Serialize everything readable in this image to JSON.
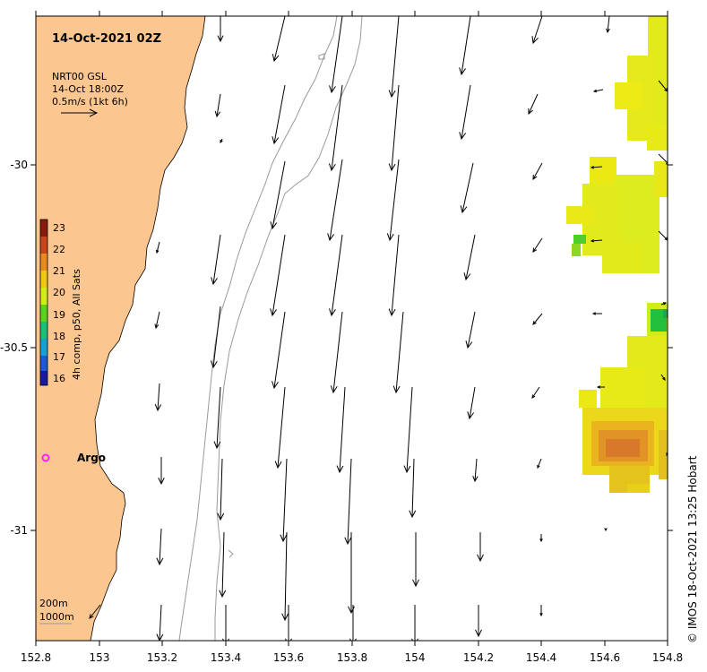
{
  "title": "14-Oct-2021 02Z",
  "legend": {
    "line1": "NRT00 GSL",
    "line2": "14-Oct 18:00Z",
    "line3": "0.5m/s (1kt 6h)"
  },
  "colorbar": {
    "label": "4h comp, p50, All Sats",
    "ticks": [
      "23",
      "22",
      "21",
      "20",
      "19",
      "18",
      "17",
      "16"
    ],
    "colors": [
      "#8a1a0a",
      "#c8461a",
      "#e88a1f",
      "#f0c814",
      "#d2ec1a",
      "#5cd21e",
      "#1fbe78",
      "#1aa0d0",
      "#1f5ad2",
      "#1a1aa0"
    ]
  },
  "x_axis": {
    "ticks": [
      "152.8",
      "153",
      "153.2",
      "153.4",
      "153.6",
      "153.8",
      "154",
      "154.2",
      "154.4",
      "154.6",
      "154.8"
    ]
  },
  "y_axis": {
    "ticks": [
      "-30",
      "-30.5",
      "-31"
    ]
  },
  "argo": {
    "label": "Argo",
    "color": "#ff22ff"
  },
  "depth_legend": {
    "line1": "200m",
    "line2": "1000m"
  },
  "credit": "© IMOS 18-Oct-2021 13:25 Hobart",
  "colors": {
    "land": "#fbc690",
    "contour": "#9a9a9a"
  }
}
